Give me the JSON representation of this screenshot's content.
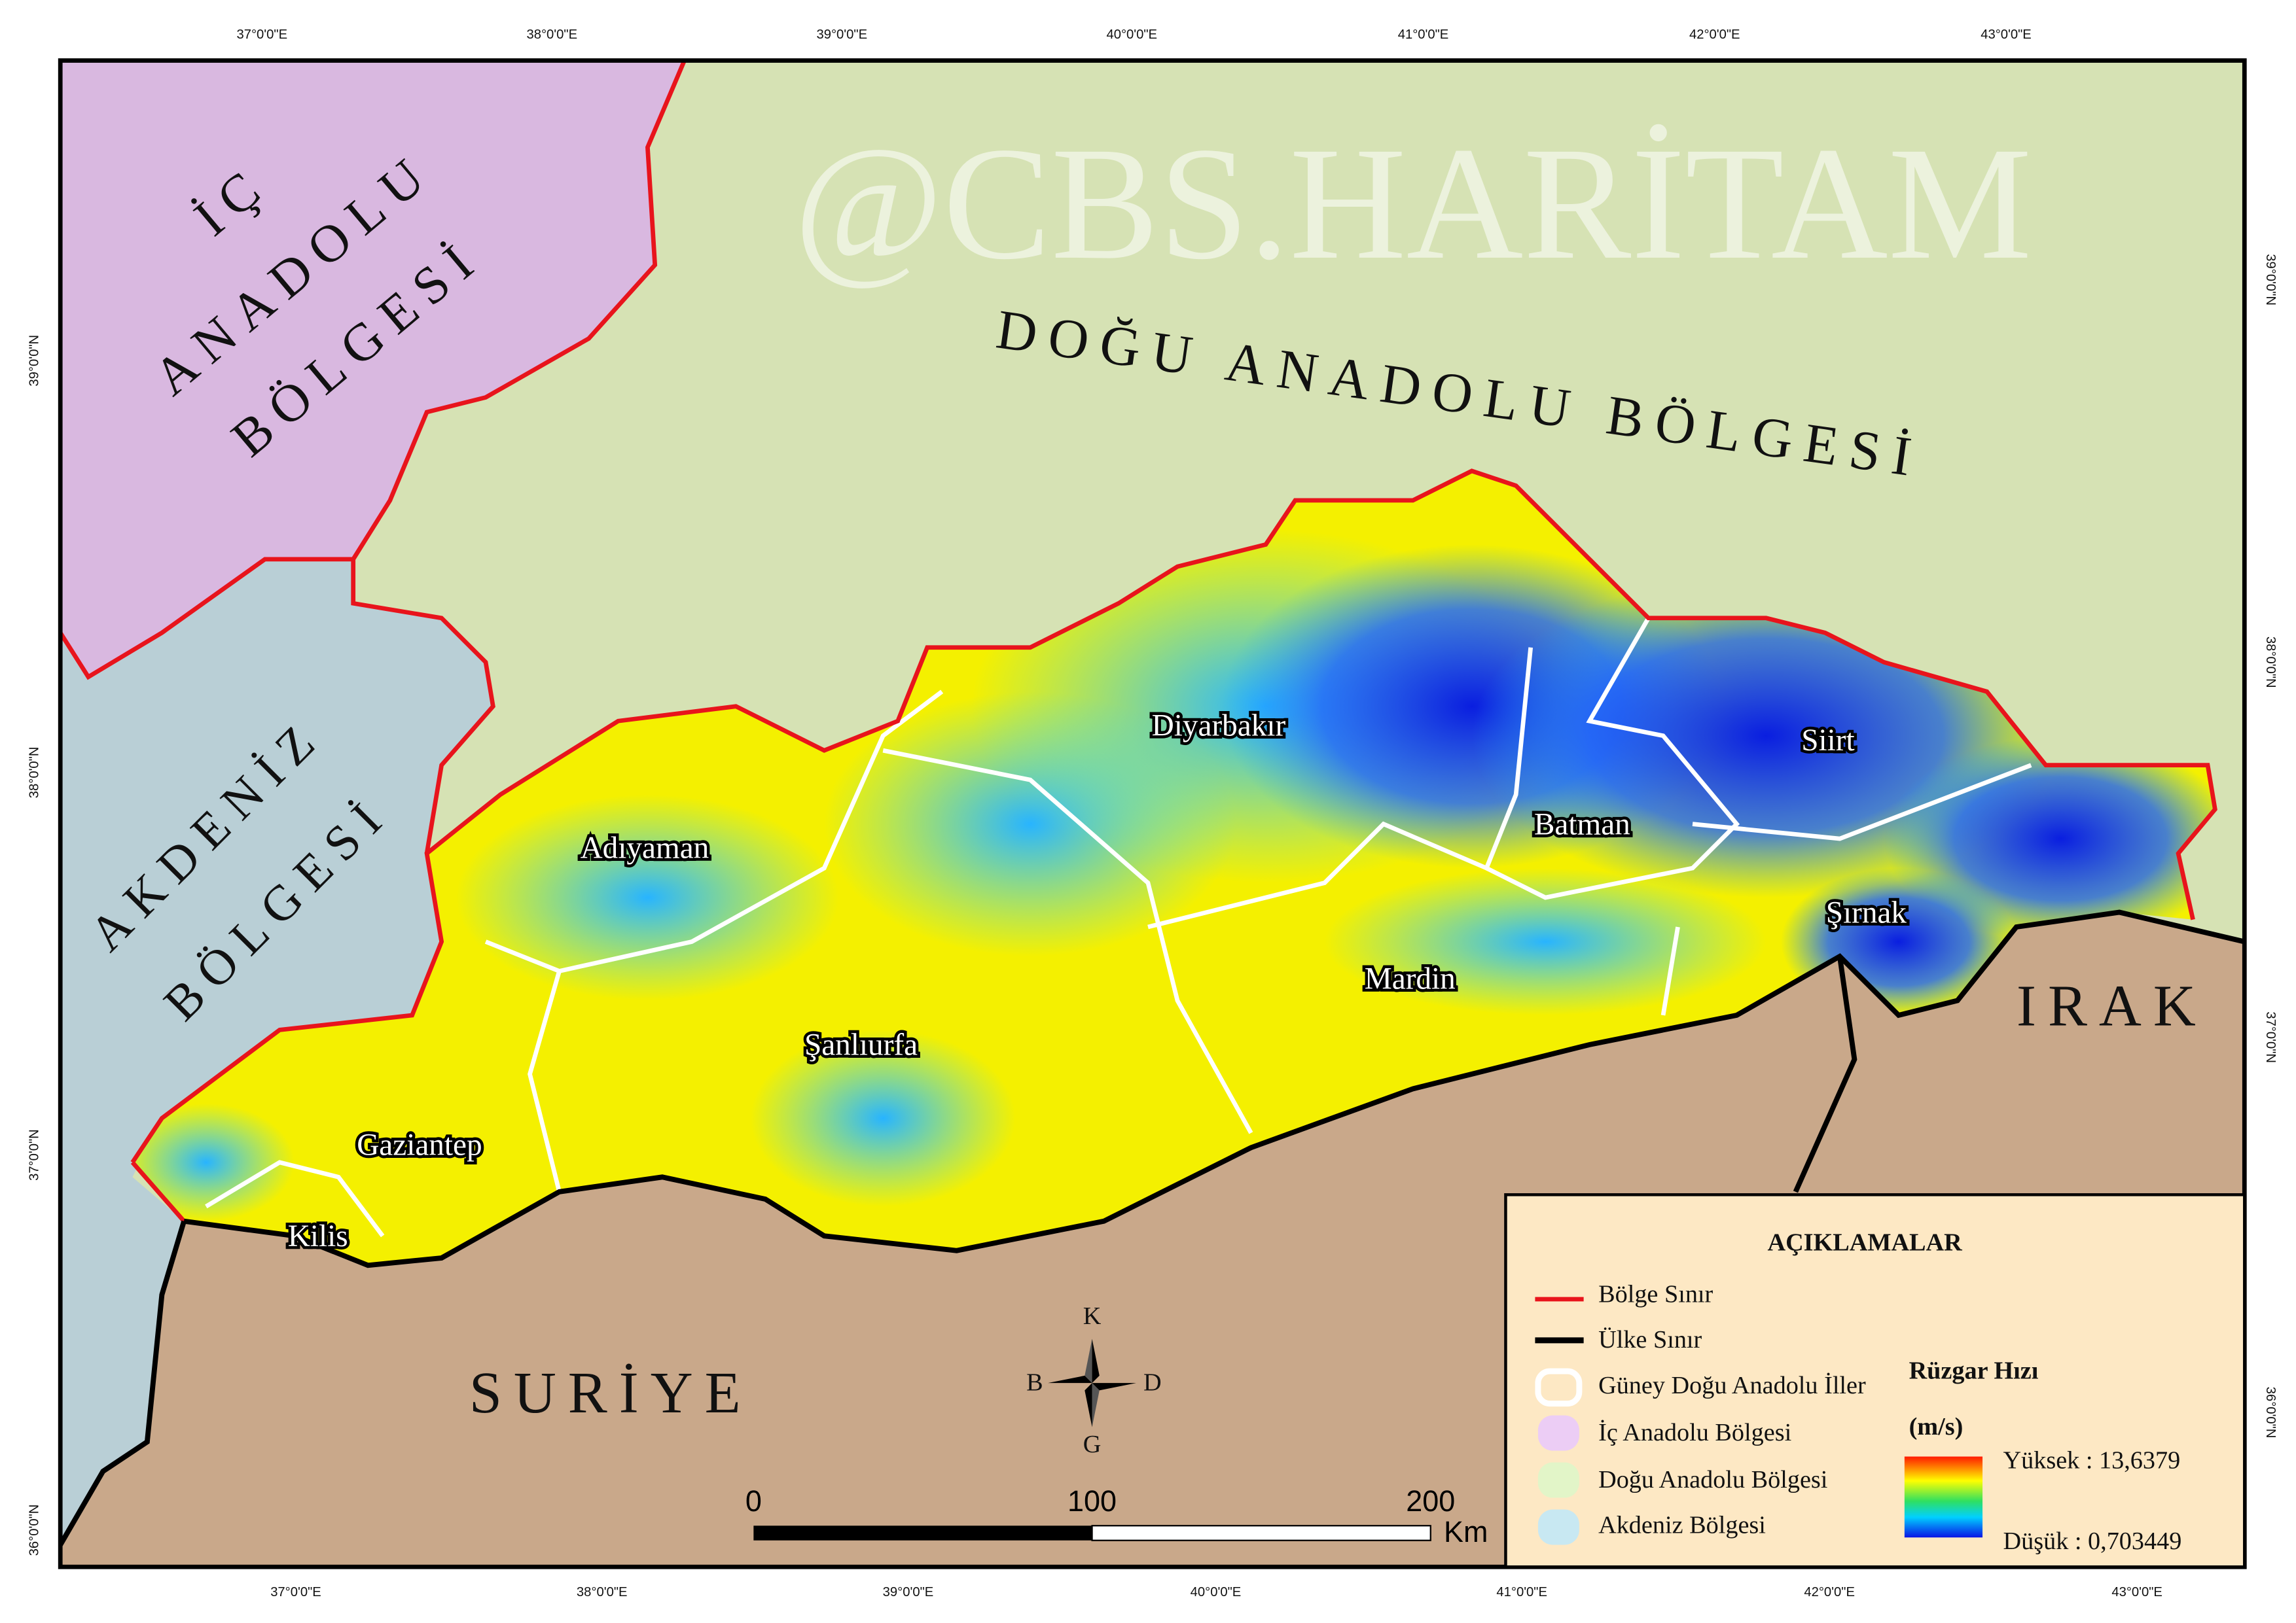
{
  "graticule": {
    "top": [
      "37°0'0\"E",
      "38°0'0\"E",
      "39°0'0\"E",
      "40°0'0\"E",
      "41°0'0\"E",
      "42°0'0\"E",
      "43°0'0\"E"
    ],
    "bottom": [
      "37°0'0\"E",
      "38°0'0\"E",
      "39°0'0\"E",
      "40°0'0\"E",
      "41°0'0\"E",
      "42°0'0\"E",
      "43°0'0\"E"
    ],
    "left": [
      "39°0'0\"N",
      "38°0'0\"N",
      "37°0'0\"N",
      "36°0'0\"N"
    ],
    "right": [
      "39°0'0\"N",
      "38°0'0\"N",
      "37°0'0\"N",
      "36°0'0\"N"
    ]
  },
  "regions": {
    "ic_anadolu": [
      "İÇ",
      "ANADOLU",
      "BÖLGESİ"
    ],
    "akdeniz": [
      "AKDENİZ",
      "BÖLGESİ"
    ],
    "dogu_anadolu": "DOĞU ANADOLU BÖLGESİ",
    "suriye": "SURİYE",
    "irak": "IRAK"
  },
  "cities": [
    "Diyarbakır",
    "Siirt",
    "Batman",
    "Adıyaman",
    "Şırnak",
    "Mardin",
    "Şanlıurfa",
    "Gaziantep",
    "Kilis"
  ],
  "watermark": "@CBS.HARİTAM",
  "compass": {
    "n": "K",
    "s": "G",
    "w": "B",
    "e": "D"
  },
  "scale_bar": {
    "labels": [
      "0",
      "100",
      "200"
    ],
    "unit": "Km"
  },
  "legend": {
    "title": "AÇIKLAMALAR",
    "items": [
      {
        "label": "Bölge Sınır",
        "color": "#e8141c"
      },
      {
        "label": "Ülke Sınır",
        "color": "#000000"
      },
      {
        "label": "Güney Doğu Anadolu İller",
        "color": "#ffffff"
      },
      {
        "label": "İç Anadolu Bölgesi",
        "color": "#eccdf5"
      },
      {
        "label": "Doğu Anadolu Bölgesi",
        "color": "#e2f5c8"
      },
      {
        "label": "Akdeniz Bölgesi",
        "color": "#c8e8f2"
      }
    ],
    "ramp_title": "Rüzgar Hızı",
    "ramp_unit": "(m/s)",
    "high": "Yüksek : 13,6379",
    "low": "Düşük : 0,703449"
  }
}
